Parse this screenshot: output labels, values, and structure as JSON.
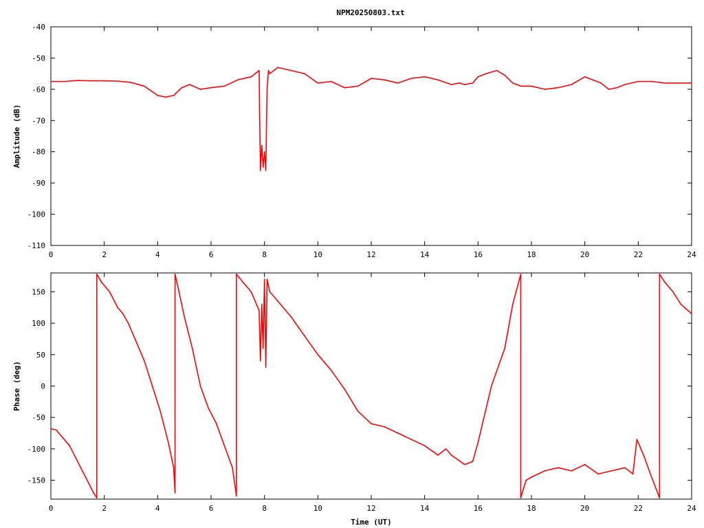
{
  "title": "NPM20250803.txt",
  "colors": {
    "trace": "#ff0000",
    "axis": "#000000",
    "background": "#ffffff"
  },
  "chart_data": [
    {
      "type": "line",
      "ylabel": "Amplitude (dB)",
      "xlabel": "",
      "xlim": [
        0,
        24
      ],
      "ylim": [
        -110,
        -40
      ],
      "xticks": [
        "0",
        "2",
        "4",
        "6",
        "8",
        "10",
        "12",
        "14",
        "16",
        "18",
        "20",
        "22",
        "24"
      ],
      "yticks": [
        "-40",
        "-50",
        "-60",
        "-70",
        "-80",
        "-90",
        "-100",
        "-110"
      ],
      "grid": false,
      "series": [
        {
          "x": [
            0,
            0.5,
            1,
            1.5,
            2,
            2.5,
            3,
            3.5,
            4,
            4.3,
            4.6,
            4.9,
            5.2,
            5.6,
            6,
            6.5,
            7,
            7.5,
            7.8,
            7.82,
            7.85,
            7.9,
            7.95,
            8.0,
            8.05,
            8.1,
            8.15,
            8.2,
            8.5,
            9,
            9.5,
            10,
            10.5,
            11,
            11.5,
            12,
            12.5,
            13,
            13.5,
            14,
            14.5,
            15,
            15.3,
            15.5,
            15.8,
            16,
            16.3,
            16.7,
            17,
            17.3,
            17.6,
            18,
            18.5,
            19,
            19.5,
            20,
            20.3,
            20.6,
            20.9,
            21.2,
            21.5,
            22,
            22.5,
            23,
            23.5,
            24
          ],
          "y": [
            -57.5,
            -57.5,
            -57.2,
            -57.3,
            -57.3,
            -57.4,
            -57.8,
            -59,
            -62,
            -62.5,
            -62,
            -59.5,
            -58.5,
            -60,
            -59.5,
            -59,
            -57,
            -56,
            -54,
            -69,
            -86,
            -78,
            -85,
            -80,
            -86,
            -60,
            -54,
            -55,
            -53,
            -54,
            -55,
            -58,
            -57.5,
            -59.5,
            -59,
            -56.5,
            -57,
            -58,
            -56.5,
            -56,
            -57,
            -58.5,
            -58,
            -58.5,
            -58,
            -56,
            -55,
            -54,
            -55.5,
            -58,
            -59,
            -59,
            -60,
            -59.5,
            -58.5,
            -56,
            -57,
            -58,
            -60,
            -59.5,
            -58.5,
            -57.5,
            -57.5,
            -58,
            -58,
            -58
          ]
        }
      ]
    },
    {
      "type": "line",
      "ylabel": "Phase (deg)",
      "xlabel": "Time (UT)",
      "xlim": [
        0,
        24
      ],
      "ylim": [
        -180,
        180
      ],
      "xticks": [
        "0",
        "2",
        "4",
        "6",
        "8",
        "10",
        "12",
        "14",
        "16",
        "18",
        "20",
        "22",
        "24"
      ],
      "yticks": [
        "150",
        "100",
        "50",
        "0",
        "-50",
        "-100",
        "-150"
      ],
      "grid": false,
      "series": [
        {
          "x": [
            0,
            0.2,
            0.4,
            0.7,
            1.0,
            1.3,
            1.6,
            1.72,
            1.72,
            1.9,
            2.2,
            2.5,
            2.7,
            2.9,
            3.2,
            3.5,
            3.8,
            4.1,
            4.4,
            4.6,
            4.65,
            4.65,
            4.8,
            5.0,
            5.3,
            5.6,
            5.9,
            6.2,
            6.5,
            6.8,
            6.95,
            6.95,
            7.2,
            7.5,
            7.8,
            7.85,
            7.9,
            7.95,
            8.0,
            8.05,
            8.1,
            8.2,
            8.5,
            9.0,
            9.5,
            10.0,
            10.5,
            11.0,
            11.5,
            12.0,
            12.5,
            13.0,
            13.5,
            14.0,
            14.5,
            14.8,
            15.0,
            15.5,
            15.8,
            16.0,
            16.5,
            17.0,
            17.3,
            17.6,
            17.6,
            17.8,
            18.0,
            18.5,
            19.0,
            19.5,
            20.0,
            20.5,
            21.0,
            21.5,
            21.8,
            21.95,
            22.2,
            22.5,
            22.8,
            22.8,
            23.0,
            23.3,
            23.6,
            24.0
          ],
          "y": [
            -68,
            -70,
            -80,
            -95,
            -120,
            -145,
            -170,
            -178,
            178,
            165,
            150,
            125,
            115,
            100,
            70,
            40,
            0,
            -40,
            -90,
            -130,
            -170,
            178,
            150,
            110,
            60,
            0,
            -35,
            -60,
            -95,
            -130,
            -175,
            178,
            165,
            150,
            120,
            40,
            130,
            60,
            170,
            30,
            170,
            150,
            135,
            110,
            80,
            50,
            25,
            -5,
            -40,
            -60,
            -65,
            -75,
            -85,
            -95,
            -110,
            -100,
            -110,
            -125,
            -120,
            -90,
            0,
            60,
            130,
            178,
            -178,
            -150,
            -145,
            -135,
            -130,
            -135,
            -125,
            -140,
            -135,
            -130,
            -140,
            -85,
            -110,
            -145,
            -178,
            178,
            165,
            150,
            130,
            115
          ]
        }
      ]
    }
  ]
}
